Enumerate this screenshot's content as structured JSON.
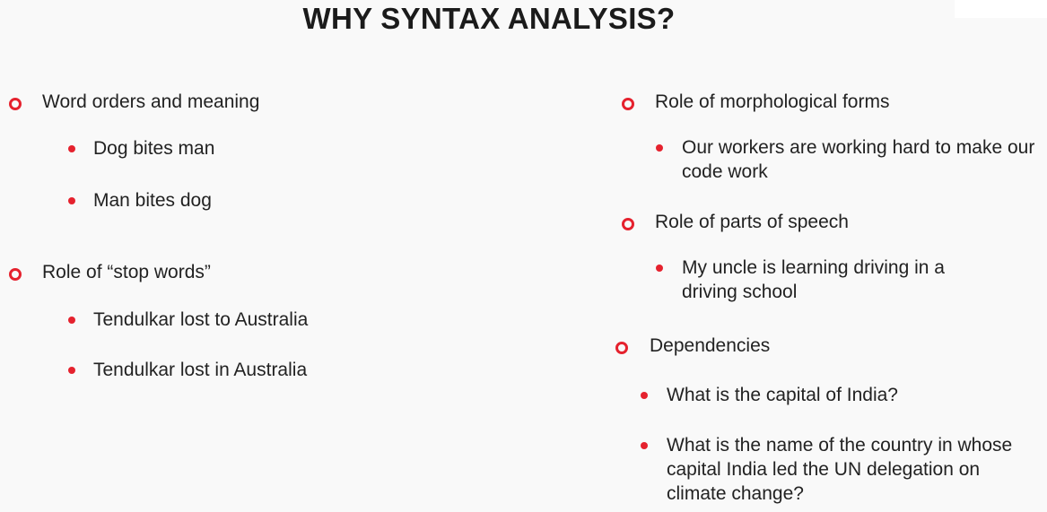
{
  "slide": {
    "title": "WHY SYNTAX ANALYSIS?",
    "left_column": [
      {
        "heading": "Word orders and meaning",
        "bullets": [
          "Dog bites man",
          "Man bites dog"
        ]
      },
      {
        "heading": "Role of “stop words”",
        "bullets": [
          "Tendulkar lost to Australia",
          "Tendulkar lost in Australia"
        ]
      }
    ],
    "right_column": [
      {
        "heading": "Role of morphological forms",
        "bullets": [
          "Our workers are working hard to make our code work"
        ]
      },
      {
        "heading": "Role of parts of speech",
        "bullets": [
          "My uncle is learning driving in a driving school"
        ]
      },
      {
        "heading": "Dependencies",
        "bullets": [
          "What is the capital of India?",
          "What is the name of the country in whose capital India led the UN delegation on climate change?"
        ]
      }
    ],
    "colors": {
      "accent": "#e5222e",
      "text": "#222222",
      "background": "#f9f9f9"
    }
  }
}
